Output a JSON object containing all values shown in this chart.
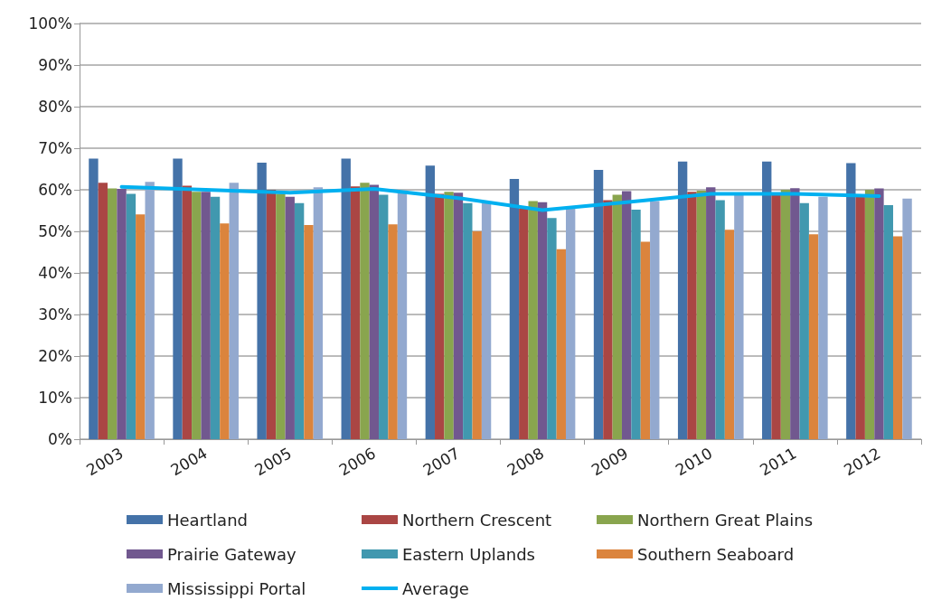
{
  "chart_data": {
    "type": "bar",
    "categories": [
      "2003",
      "2004",
      "2005",
      "2006",
      "2007",
      "2008",
      "2009",
      "2010",
      "2011",
      "2012"
    ],
    "series": [
      {
        "name": "Heartland",
        "color": "#4472a8",
        "values": [
          67.5,
          67.5,
          66.5,
          67.5,
          65.8,
          62.6,
          64.8,
          66.8,
          66.8,
          66.4
        ]
      },
      {
        "name": "Northern Crescent",
        "color": "#aa4644",
        "values": [
          61.7,
          61,
          60,
          60.8,
          59,
          55.5,
          57.5,
          59.5,
          59,
          58.5
        ]
      },
      {
        "name": "Northern Great Plains",
        "color": "#89a54e",
        "values": [
          60.3,
          59.5,
          59,
          61.7,
          59.5,
          57.3,
          58.8,
          59.8,
          60,
          60
        ]
      },
      {
        "name": "Prairie Gateway",
        "color": "#71588f",
        "values": [
          60.2,
          59.5,
          58.3,
          61.2,
          59.3,
          57,
          59.7,
          60.6,
          60.4,
          60.3
        ]
      },
      {
        "name": "Eastern Uplands",
        "color": "#4198af",
        "values": [
          59,
          58.3,
          56.8,
          58.8,
          56.8,
          53.2,
          55.2,
          57.5,
          56.8,
          56.3
        ]
      },
      {
        "name": "Southern Seaboard",
        "color": "#db843d",
        "values": [
          54.1,
          51.9,
          51.5,
          51.7,
          50,
          45.7,
          47.5,
          50.4,
          49.3,
          48.8
        ]
      },
      {
        "name": "Mississippi Portal",
        "color": "#93a9cf",
        "values": [
          61.9,
          61.7,
          60.6,
          59.2,
          57,
          55.7,
          57.3,
          58.7,
          58.3,
          57.9
        ]
      },
      {
        "name": "Average",
        "type": "line",
        "color": "#00b0f0",
        "values": [
          60.7,
          60,
          59.3,
          60.2,
          58,
          55.1,
          57,
          59,
          59,
          58.5
        ]
      }
    ],
    "ylim": [
      0,
      100
    ],
    "yticks": [
      {
        "value": 0,
        "label": "0%"
      },
      {
        "value": 10,
        "label": "10%"
      },
      {
        "value": 20,
        "label": "20%"
      },
      {
        "value": 30,
        "label": "30%"
      },
      {
        "value": 40,
        "label": "40%"
      },
      {
        "value": 50,
        "label": "50%"
      },
      {
        "value": 60,
        "label": "60%"
      },
      {
        "value": 70,
        "label": "70%"
      },
      {
        "value": 80,
        "label": "80%"
      },
      {
        "value": 90,
        "label": "90%"
      },
      {
        "value": 100,
        "label": "100%"
      }
    ],
    "grid": "y",
    "legend": "bottom",
    "marker": "none",
    "line_style": "solid"
  }
}
